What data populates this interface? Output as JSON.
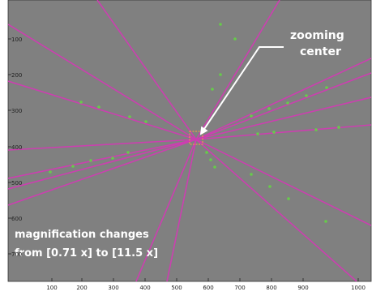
{
  "colors": {
    "plot_background": "#808080",
    "line": "#cc3fb0",
    "dot": "#66cc4a",
    "marker_box": "#ffa040",
    "annotation": "#ffffff"
  },
  "axes": {
    "x_ticks": [
      "100",
      "200",
      "300",
      "400",
      "500",
      "600",
      "700",
      "800",
      "900",
      "1000"
    ],
    "y_ticks": [
      "100",
      "200",
      "300",
      "400",
      "500",
      "600",
      "700"
    ]
  },
  "annotations": {
    "zoom_title": "zooming",
    "zoom_subtitle": "center",
    "mag_line1": "magnification changes",
    "mag_line2": "from [0.71 x]  to [11.5 x]"
  }
}
